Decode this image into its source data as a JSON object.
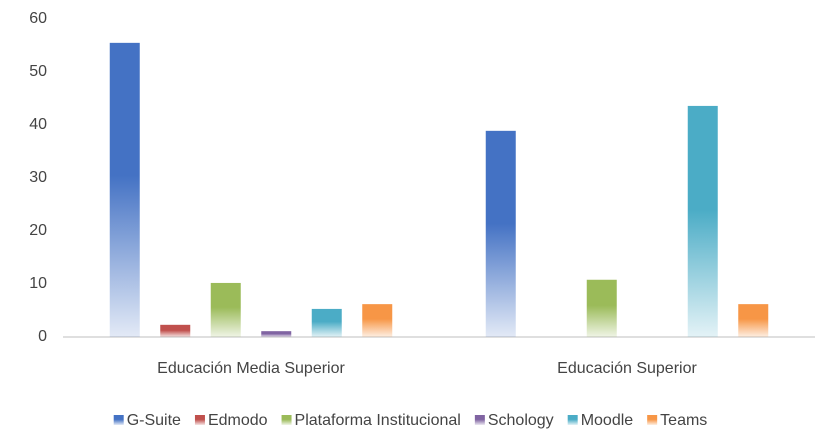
{
  "chart_data": {
    "type": "bar",
    "categories": [
      "Educación Media Superior",
      "Educación Superior"
    ],
    "series": [
      {
        "name": "G-Suite",
        "color": "#4472c4",
        "values": [
          55.5,
          38.9
        ]
      },
      {
        "name": "Edmodo",
        "color": "#c0504d",
        "values": [
          2.3,
          0
        ]
      },
      {
        "name": "Plataforma Institucional",
        "color": "#9bbb59",
        "values": [
          10.2,
          10.8
        ]
      },
      {
        "name": "Schology",
        "color": "#8064a2",
        "values": [
          1.1,
          0
        ]
      },
      {
        "name": "Moodle",
        "color": "#4bacc6",
        "values": [
          5.3,
          43.6
        ]
      },
      {
        "name": "Teams",
        "color": "#f79646",
        "values": [
          6.2,
          6.2
        ]
      }
    ],
    "ylim": [
      0,
      60
    ],
    "yticks": [
      0,
      10,
      20,
      30,
      40,
      50,
      60
    ],
    "grid": false,
    "legend": "bottom"
  }
}
